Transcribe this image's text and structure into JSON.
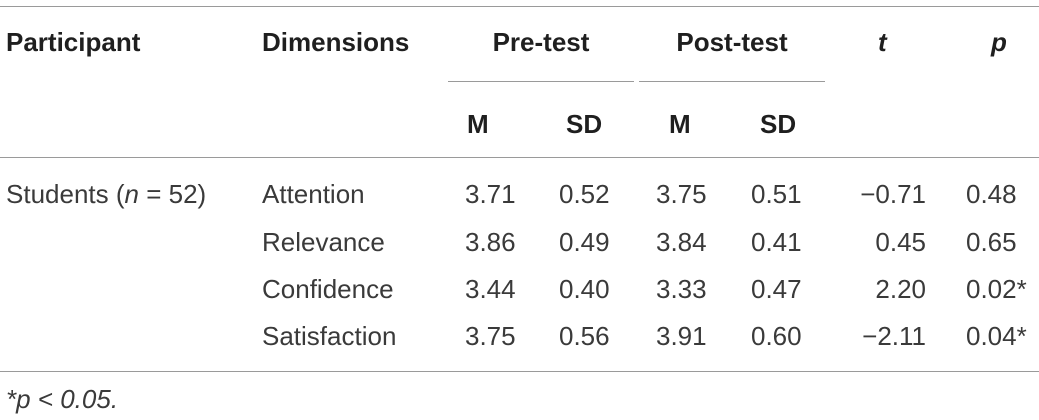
{
  "header": {
    "participant": "Participant",
    "dimensions": "Dimensions",
    "pre_test": "Pre-test",
    "post_test": "Post-test",
    "t": "t",
    "p": "p",
    "m": "M",
    "sd": "SD"
  },
  "group": {
    "label_prefix": "Students (",
    "label_n": "n",
    "label_suffix": " = 52)"
  },
  "rows": [
    {
      "dimension": "Attention",
      "pre_m": "3.71",
      "pre_sd": "0.52",
      "post_m": "3.75",
      "post_sd": "0.51",
      "t": "−0.71",
      "p": "0.48"
    },
    {
      "dimension": "Relevance",
      "pre_m": "3.86",
      "pre_sd": "0.49",
      "post_m": "3.84",
      "post_sd": "0.41",
      "t": "0.45",
      "p": "0.65"
    },
    {
      "dimension": "Confidence",
      "pre_m": "3.44",
      "pre_sd": "0.40",
      "post_m": "3.33",
      "post_sd": "0.47",
      "t": "2.20",
      "p": "0.02*"
    },
    {
      "dimension": "Satisfaction",
      "pre_m": "3.75",
      "pre_sd": "0.56",
      "post_m": "3.91",
      "post_sd": "0.60",
      "t": "−2.11",
      "p": "0.04*"
    }
  ],
  "footnote": "*p < 0.05."
}
